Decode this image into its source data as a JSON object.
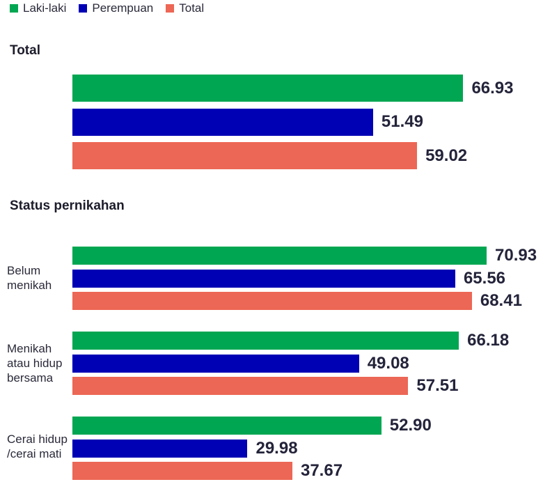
{
  "legend": [
    {
      "label": "Laki-laki",
      "color": "#00a651"
    },
    {
      "label": "Perempuan",
      "color": "#0000b4"
    },
    {
      "label": "Total",
      "color": "#ec6755"
    }
  ],
  "sections": {
    "total_title": "Total",
    "status_title": "Status pernikahan"
  },
  "chart_data": {
    "type": "bar",
    "orientation": "horizontal",
    "series_names": [
      "Laki-laki",
      "Perempuan",
      "Total"
    ],
    "colors": [
      "#00a651",
      "#0000b4",
      "#ec6755"
    ],
    "xlim": [
      0,
      71
    ],
    "groups": [
      {
        "section": "Total",
        "label": "",
        "values": [
          66.93,
          51.49,
          59.02
        ]
      },
      {
        "section": "Status pernikahan",
        "label": "Belum menikah",
        "values": [
          70.93,
          65.56,
          68.41
        ]
      },
      {
        "section": "Status pernikahan",
        "label": "Menikah atau hidup bersama",
        "values": [
          66.18,
          49.08,
          57.51
        ]
      },
      {
        "section": "Status pernikahan",
        "label": "Cerai hidup /cerai mati",
        "values": [
          52.9,
          29.98,
          37.67
        ]
      }
    ]
  }
}
